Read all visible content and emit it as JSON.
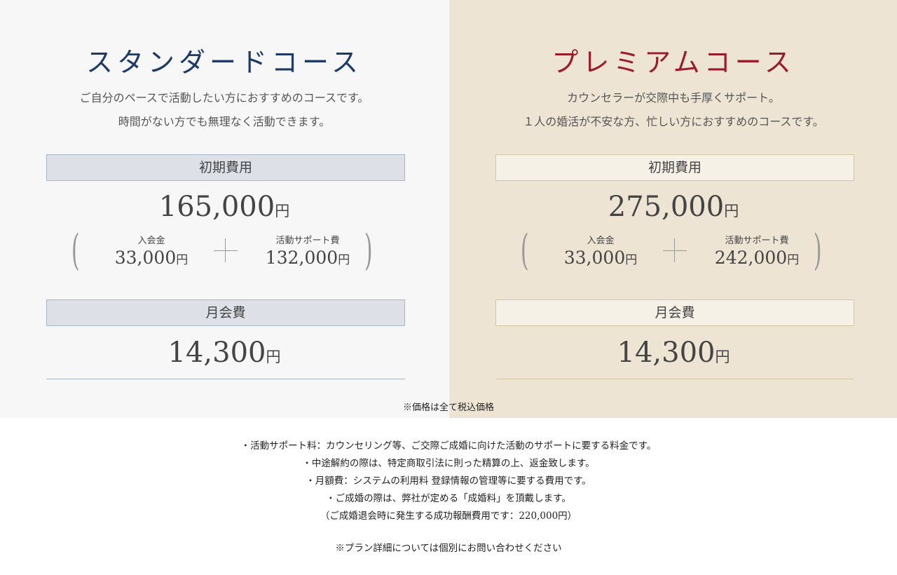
{
  "plans": [
    {
      "title": "スタンダードコース",
      "desc": [
        "ご自分のペースで活動したい方におすすめのコースです。",
        "時間がない方でも無理なく活動できます。"
      ],
      "initial_label": "初期費用",
      "initial_total": "165,000",
      "yen": "円",
      "admission_label": "入会金",
      "admission": "33,000",
      "support_label": "活動サポート費",
      "support": "132,000",
      "monthly_label": "月会費",
      "monthly": "14,300",
      "color": "#1e3a66"
    },
    {
      "title": "プレミアムコース",
      "desc": [
        "カウンセラーが交際中も手厚くサポート。",
        "１人の婚活が不安な方、忙しい方におすすめのコースです。"
      ],
      "initial_label": "初期費用",
      "initial_total": "275,000",
      "yen": "円",
      "admission_label": "入会金",
      "admission": "33,000",
      "support_label": "活動サポート費",
      "support": "242,000",
      "monthly_label": "月会費",
      "monthly": "14,300",
      "color": "#9b1c2a"
    }
  ],
  "tax_note": "※価格は全て税込価格",
  "notes": [
    "・活動サポート料：カウンセリング等、ご交際ご成婚に向けた活動のサポートに要する料金です。",
    "・中途解約の際は、特定商取引法に則った精算の上、返金致します。",
    "・月額費：システムの利用料 登録情報の管理等に要する費用です。",
    "・ご成婚の際は、弊社が定める「成婚料」を頂戴します。",
    "（ご成婚退会時に発生する成功報酬費用です：220,000円）"
  ],
  "contact_note": "※プラン詳細については個別にお問い合わせください"
}
